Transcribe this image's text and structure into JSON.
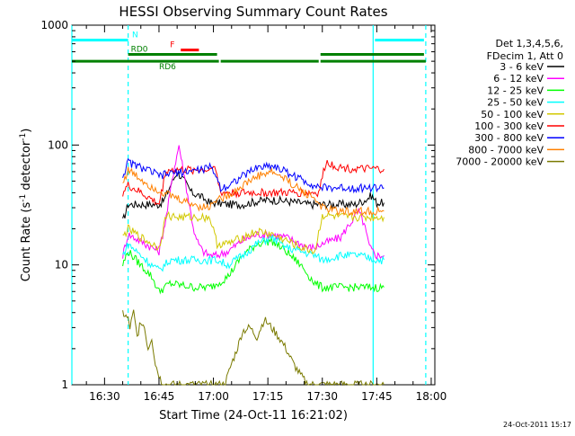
{
  "chart_data": {
    "type": "line",
    "title": "HESSI Observing Summary Count Rates",
    "xlabel": "Start Time (24-Oct-11 16:21:02)",
    "ylabel": "Count Rate (s",
    "ylabel_sup": "-1",
    "ylabel_mid": " detector",
    "ylabel_end": ")",
    "x_time_range": [
      "16:21",
      "18:01"
    ],
    "ylim": [
      1,
      1000
    ],
    "yscale": "log",
    "x_ticks": [
      {
        "label": "16:30",
        "min": 30
      },
      {
        "label": "16:45",
        "min": 45
      },
      {
        "label": "17:00",
        "min": 60
      },
      {
        "label": "17:15",
        "min": 75
      },
      {
        "label": "17:30",
        "min": 90
      },
      {
        "label": "17:45",
        "min": 105
      },
      {
        "label": "18:00",
        "min": 120
      }
    ],
    "y_ticks": [
      {
        "label": "1",
        "value": 1
      },
      {
        "label": "10",
        "value": 10
      },
      {
        "label": "100",
        "value": 100
      },
      {
        "label": "1000",
        "value": 1000
      }
    ],
    "legend_header": [
      "Det 1,3,4,5,6,",
      "FDecim 1, Att 0"
    ],
    "series": [
      {
        "name": "3 - 6 keV",
        "color": "#000000",
        "x": [
          35,
          36.5,
          45,
          46.5,
          48,
          50,
          52,
          54,
          56,
          59,
          61,
          64,
          68,
          72,
          76,
          80,
          84,
          86,
          88,
          90,
          95,
          99,
          102,
          103.5,
          105,
          107
        ],
        "y": [
          23,
          32,
          32,
          35,
          45,
          60,
          50,
          40,
          38,
          33,
          33,
          32,
          32,
          34,
          35,
          34,
          33,
          32,
          32,
          32,
          32,
          32,
          35,
          38,
          33,
          33
        ]
      },
      {
        "name": "6 - 12 keV",
        "color": "#ff00ff",
        "x": [
          35,
          36.5,
          45,
          47,
          49,
          50.5,
          52,
          53.5,
          55,
          57,
          59,
          61,
          64,
          68,
          72,
          76,
          80,
          84,
          86,
          88,
          90,
          95,
          98,
          100,
          101.5,
          103,
          105,
          107
        ],
        "y": [
          12,
          18,
          13,
          25,
          60,
          100,
          55,
          30,
          17,
          13,
          12,
          12,
          13,
          16,
          18,
          18,
          17,
          15,
          14,
          14,
          15,
          17,
          23,
          28,
          22,
          14,
          12,
          12
        ]
      },
      {
        "name": "12 - 25 keV",
        "color": "#00ff00",
        "x": [
          35,
          36.5,
          40,
          43,
          45,
          48,
          55,
          59,
          61,
          64,
          68,
          72,
          76,
          80,
          84,
          88,
          90,
          95,
          100,
          105,
          107
        ],
        "y": [
          10,
          13,
          10,
          8,
          6,
          7,
          6.5,
          6.5,
          7,
          8,
          12,
          15,
          16,
          13,
          10,
          7,
          6.5,
          6.5,
          6.5,
          6.5,
          6.5
        ]
      },
      {
        "name": "25 - 50 keV",
        "color": "#00ffff",
        "x": [
          35,
          36.5,
          40,
          43,
          45,
          48,
          55,
          59,
          61,
          64,
          68,
          72,
          76,
          80,
          84,
          88,
          90,
          95,
          100,
          105,
          107
        ],
        "y": [
          12,
          15,
          12,
          10,
          9,
          11,
          11,
          11,
          11,
          10,
          12,
          15,
          17,
          14,
          13,
          12,
          11,
          12,
          12,
          11,
          11
        ]
      },
      {
        "name": "50 - 100 keV",
        "color": "#d2c800",
        "x": [
          35,
          36.5,
          40,
          43,
          45,
          47,
          50,
          55,
          59,
          61,
          64,
          68,
          72,
          76,
          80,
          84,
          88,
          90,
          95,
          100,
          105,
          107
        ],
        "y": [
          17,
          20,
          17,
          15,
          14,
          26,
          25,
          25,
          25,
          15,
          15,
          17,
          19,
          18,
          16,
          14,
          13,
          26,
          25,
          25,
          25,
          25
        ]
      },
      {
        "name": "100 - 300 keV",
        "color": "#ff0000",
        "x": [
          35,
          36.5,
          40,
          43,
          45,
          47,
          50,
          55,
          59,
          60,
          62,
          64,
          68,
          72,
          76,
          80,
          84,
          88,
          89,
          91,
          95,
          100,
          105,
          107
        ],
        "y": [
          40,
          46,
          40,
          35,
          32,
          62,
          62,
          62,
          62,
          72,
          40,
          40,
          40,
          40,
          40,
          40,
          40,
          40,
          40,
          72,
          65,
          63,
          63,
          63
        ]
      },
      {
        "name": "300 - 800 keV",
        "color": "#0000ff",
        "x": [
          35,
          36.5,
          40,
          43,
          45,
          48,
          52,
          56,
          59,
          60,
          62,
          64,
          68,
          72,
          76,
          80,
          84,
          88,
          90,
          95,
          100,
          105,
          107
        ],
        "y": [
          55,
          72,
          65,
          60,
          55,
          58,
          60,
          62,
          65,
          62,
          44,
          46,
          55,
          65,
          68,
          60,
          52,
          46,
          44,
          44,
          44,
          44,
          44
        ]
      },
      {
        "name": "800 - 7000 keV",
        "color": "#ff8000",
        "x": [
          35,
          36.5,
          40,
          43,
          45,
          48,
          52,
          56,
          59,
          60,
          62,
          64,
          68,
          72,
          76,
          80,
          84,
          88,
          90,
          95,
          100,
          105,
          107
        ],
        "y": [
          48,
          62,
          52,
          45,
          42,
          38,
          34,
          31,
          30,
          35,
          36,
          38,
          46,
          55,
          60,
          52,
          42,
          36,
          30,
          28,
          28,
          28,
          28
        ]
      },
      {
        "name": "7000 - 20000 keV",
        "color": "#7a7a00",
        "x": [
          35,
          36.5,
          37,
          38,
          39,
          40,
          41,
          42,
          43,
          44,
          45,
          46,
          47,
          48,
          49,
          50,
          55,
          59,
          60,
          61,
          62,
          63,
          64,
          65,
          66,
          67,
          68,
          70,
          72,
          74,
          76,
          78,
          80,
          82,
          84,
          86,
          88,
          90,
          92,
          95,
          100,
          105,
          107
        ],
        "y": [
          4,
          3.5,
          3,
          4,
          2.5,
          3.5,
          3,
          2,
          2.5,
          1.5,
          1.2,
          1,
          1,
          1,
          1,
          1,
          1,
          1,
          1,
          1,
          1,
          1,
          1.2,
          1.5,
          1.8,
          2.2,
          2.8,
          3,
          2.5,
          3.5,
          3,
          2.5,
          2,
          1.5,
          1.2,
          1,
          1,
          1,
          1,
          1,
          1,
          1,
          1
        ]
      }
    ],
    "state_bars": [
      {
        "label": "N",
        "color": "#00ffff",
        "value": 750,
        "segments": [
          [
            21,
            36.5
          ],
          [
            104.5,
            118
          ]
        ]
      },
      {
        "label": "F",
        "color": "#ff0000",
        "value": 620,
        "segments": [
          [
            51,
            56
          ]
        ]
      },
      {
        "label": "RD0",
        "color": "#008000",
        "value": 570,
        "segments": [
          [
            36.5,
            61
          ],
          [
            89.5,
            118
          ]
        ]
      },
      {
        "label": "RD6",
        "color": "#008000",
        "value": 500,
        "segments": [
          [
            21,
            46
          ],
          [
            46,
            61.5
          ],
          [
            62,
            89
          ],
          [
            89.5,
            118.5
          ]
        ]
      }
    ],
    "boundaries": [
      {
        "min": 21,
        "color": "#00ffff",
        "style": "solid"
      },
      {
        "min": 36.5,
        "color": "#00ffff",
        "style": "dashed"
      },
      {
        "min": 104,
        "color": "#00ffff",
        "style": "solid"
      },
      {
        "min": 118.5,
        "color": "#00ffff",
        "style": "dashed"
      }
    ]
  },
  "footer_timestamp": "24-Oct-2011 15:17"
}
